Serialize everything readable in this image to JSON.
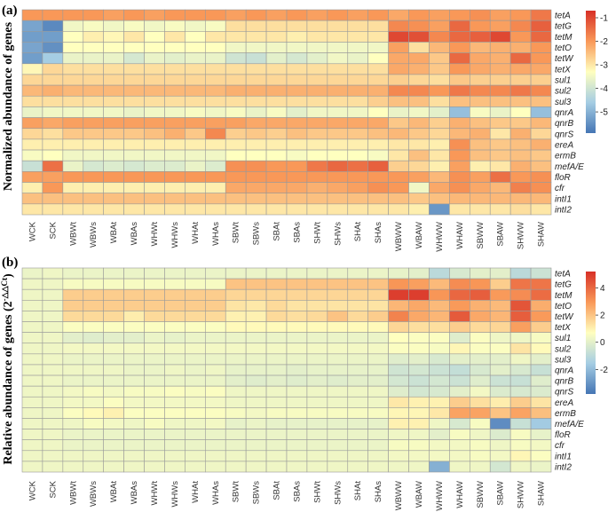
{
  "chart_data": [
    {
      "type": "heatmap",
      "panel_label": "(a)",
      "ylabel": "Normalized abundance of genes",
      "samples": [
        "WCK",
        "SCK",
        "WBWt",
        "WBWs",
        "WBAt",
        "WBAs",
        "WHWt",
        "WHWs",
        "WHAt",
        "WHAs",
        "SBWt",
        "SBWs",
        "SBAt",
        "SBAs",
        "SHWt",
        "SHWs",
        "SHAt",
        "SHAs",
        "WBWW",
        "WBAW",
        "WHWW",
        "WHAW",
        "SBWW",
        "SBAW",
        "SHWW",
        "SHAW"
      ],
      "genes": [
        "tetA",
        "tetG",
        "tetM",
        "tetO",
        "tetW",
        "tetX",
        "sul1",
        "sul2",
        "sul3",
        "qnrA",
        "qnrB",
        "qnrS",
        "ereA",
        "ermB",
        "mefA/E",
        "floR",
        "cfr",
        "intI1",
        "intI2"
      ],
      "color_range": [
        -5.9,
        -0.7
      ],
      "colorbar_ticks": [
        -1,
        -2,
        -3,
        -4,
        -5
      ],
      "values": [
        [
          -2.0,
          -2.0,
          -2.0,
          -2.0,
          -2.1,
          -2.0,
          -2.1,
          -2.0,
          -2.0,
          -2.0,
          -2.1,
          -2.0,
          -2.1,
          -2.0,
          -2.1,
          -2.0,
          -2.1,
          -2.0,
          -2.2,
          -2.0,
          -2.1,
          -2.0,
          -1.9,
          -2.1,
          -2.0,
          -1.6
        ],
        [
          -5.2,
          -5.6,
          -3.5,
          -3.4,
          -3.5,
          -3.4,
          -3.5,
          -3.4,
          -3.5,
          -3.4,
          -2.9,
          -2.9,
          -2.9,
          -2.9,
          -2.9,
          -2.9,
          -2.9,
          -2.9,
          -1.8,
          -1.9,
          -2.1,
          -1.4,
          -2.0,
          -2.1,
          -1.8,
          -1.3
        ],
        [
          -5.3,
          -5.3,
          -3.3,
          -3.1,
          -3.2,
          -3.0,
          -3.3,
          -3.0,
          -3.3,
          -3.0,
          -3.0,
          -3.0,
          -3.0,
          -3.1,
          -3.0,
          -3.0,
          -3.0,
          -3.0,
          -1.0,
          -1.1,
          -1.8,
          -1.4,
          -1.3,
          -1.0,
          -2.0,
          -1.4
        ],
        [
          -5.2,
          -5.5,
          -3.3,
          -3.3,
          -3.3,
          -3.3,
          -3.3,
          -3.3,
          -3.3,
          -3.3,
          -3.5,
          -3.5,
          -3.5,
          -3.5,
          -3.5,
          -3.5,
          -3.5,
          -3.5,
          -2.1,
          -2.9,
          -2.4,
          -2.0,
          -2.4,
          -2.3,
          -2.3,
          -2.0
        ],
        [
          -5.3,
          -4.6,
          -3.6,
          -3.6,
          -3.6,
          -3.9,
          -3.6,
          -3.7,
          -3.6,
          -3.6,
          -4.0,
          -4.1,
          -3.7,
          -3.9,
          -3.7,
          -3.5,
          -3.6,
          -3.3,
          -2.2,
          -2.2,
          -2.6,
          -1.4,
          -2.2,
          -2.3,
          -1.4,
          -2.0
        ],
        [
          -3.2,
          -2.8,
          -2.9,
          -2.9,
          -2.9,
          -2.9,
          -2.9,
          -2.9,
          -2.9,
          -2.9,
          -2.9,
          -2.9,
          -2.9,
          -2.9,
          -2.9,
          -2.9,
          -2.9,
          -2.9,
          -2.2,
          -2.3,
          -2.6,
          -2.0,
          -2.2,
          -2.3,
          -2.2,
          -2.2
        ],
        [
          -2.8,
          -2.8,
          -2.8,
          -2.8,
          -2.8,
          -2.8,
          -2.8,
          -2.8,
          -2.8,
          -2.8,
          -2.8,
          -2.8,
          -2.8,
          -2.8,
          -2.8,
          -2.8,
          -2.8,
          -2.8,
          -2.7,
          -2.8,
          -2.9,
          -2.6,
          -2.7,
          -2.7,
          -2.7,
          -2.7
        ],
        [
          -2.4,
          -2.3,
          -2.4,
          -2.4,
          -2.4,
          -2.4,
          -2.4,
          -2.4,
          -2.4,
          -2.4,
          -2.3,
          -2.3,
          -2.3,
          -2.3,
          -2.3,
          -2.3,
          -2.3,
          -2.3,
          -1.8,
          -1.8,
          -2.0,
          -1.6,
          -1.8,
          -1.8,
          -1.6,
          -1.8
        ],
        [
          -2.9,
          -2.9,
          -2.9,
          -2.9,
          -2.9,
          -2.9,
          -2.9,
          -2.9,
          -2.9,
          -2.9,
          -2.9,
          -2.9,
          -2.9,
          -2.9,
          -2.9,
          -2.9,
          -2.9,
          -2.7,
          -2.5,
          -2.5,
          -2.9,
          -2.5,
          -2.5,
          -2.5,
          -2.5,
          -2.5
        ],
        [
          -3.6,
          -3.5,
          -3.5,
          -3.5,
          -3.5,
          -3.6,
          -3.5,
          -3.5,
          -3.4,
          -3.5,
          -3.4,
          -3.6,
          -3.4,
          -3.7,
          -3.5,
          -3.5,
          -3.5,
          -3.3,
          -3.6,
          -3.5,
          -3.7,
          -4.8,
          -3.4,
          -3.6,
          -3.3,
          -4.8
        ],
        [
          -2.1,
          -2.2,
          -2.1,
          -2.1,
          -2.1,
          -2.1,
          -2.1,
          -2.1,
          -2.1,
          -2.1,
          -2.1,
          -2.2,
          -2.2,
          -2.2,
          -2.2,
          -2.2,
          -2.2,
          -2.2,
          -2.6,
          -2.4,
          -2.7,
          -2.3,
          -2.5,
          -2.6,
          -2.6,
          -2.4
        ],
        [
          -2.8,
          -2.9,
          -2.6,
          -2.6,
          -2.6,
          -2.6,
          -2.5,
          -2.3,
          -2.6,
          -1.8,
          -2.7,
          -2.6,
          -2.7,
          -2.5,
          -2.6,
          -2.6,
          -2.6,
          -2.5,
          -2.4,
          -2.6,
          -2.8,
          -2.4,
          -2.3,
          -3.0,
          -2.3,
          -2.8
        ],
        [
          -3.1,
          -3.1,
          -3.1,
          -3.1,
          -3.1,
          -3.1,
          -3.1,
          -3.1,
          -3.1,
          -3.1,
          -3.1,
          -3.1,
          -3.1,
          -3.1,
          -3.1,
          -3.1,
          -3.1,
          -3.1,
          -3.0,
          -3.0,
          -3.1,
          -1.9,
          -2.5,
          -2.6,
          -2.5,
          -2.3
        ],
        [
          -3.4,
          -3.3,
          -3.5,
          -3.5,
          -3.5,
          -3.5,
          -3.5,
          -3.5,
          -3.5,
          -3.5,
          -3.3,
          -3.3,
          -3.3,
          -3.4,
          -3.3,
          -3.3,
          -3.3,
          -3.4,
          -3.0,
          -2.5,
          -3.0,
          -2.0,
          -2.5,
          -2.6,
          -2.5,
          -2.6
        ],
        [
          -4.1,
          -1.5,
          -3.6,
          -3.9,
          -3.8,
          -3.9,
          -3.8,
          -3.8,
          -3.6,
          -3.8,
          -1.9,
          -1.9,
          -2.0,
          -2.0,
          -1.6,
          -1.4,
          -1.5,
          -1.3,
          -2.7,
          -2.8,
          -3.1,
          -2.1,
          -3.1,
          -3.0,
          -2.3,
          -2.5
        ],
        [
          -2.1,
          -2.1,
          -2.0,
          -2.0,
          -2.0,
          -2.0,
          -2.0,
          -2.0,
          -2.0,
          -2.0,
          -2.0,
          -2.0,
          -2.0,
          -2.0,
          -2.0,
          -2.0,
          -2.0,
          -2.0,
          -2.0,
          -2.1,
          -2.4,
          -1.9,
          -2.1,
          -1.5,
          -2.0,
          -1.9
        ],
        [
          -3.1,
          -2.0,
          -3.1,
          -3.1,
          -3.1,
          -3.1,
          -3.1,
          -3.1,
          -3.1,
          -3.1,
          -2.2,
          -2.2,
          -2.2,
          -2.2,
          -2.3,
          -2.2,
          -2.1,
          -1.9,
          -2.0,
          -3.5,
          -2.2,
          -1.9,
          -2.2,
          -2.4,
          -1.7,
          -1.9
        ],
        [
          -2.5,
          -2.5,
          -2.5,
          -2.5,
          -2.5,
          -2.5,
          -2.5,
          -2.5,
          -2.5,
          -2.5,
          -2.5,
          -2.5,
          -2.5,
          -2.5,
          -2.5,
          -2.5,
          -2.5,
          -2.5,
          -2.5,
          -2.6,
          -2.5,
          -2.4,
          -2.4,
          -2.4,
          -2.4,
          -2.4
        ],
        [
          -3.0,
          -3.0,
          -3.0,
          -3.0,
          -3.0,
          -3.0,
          -3.0,
          -3.0,
          -3.0,
          -3.0,
          -3.0,
          -3.0,
          -3.0,
          -3.0,
          -3.0,
          -3.0,
          -3.0,
          -3.0,
          -3.0,
          -3.1,
          -5.4,
          -3.0,
          -3.0,
          -3.0,
          -2.9,
          -3.0
        ]
      ]
    },
    {
      "type": "heatmap",
      "panel_label": "(b)",
      "ylabel": "Relative abundance of genes (2",
      "ylabel_sup": "-△△Ct",
      "ylabel_end": ")",
      "samples": [
        "WCK",
        "SCK",
        "WBWt",
        "WBWs",
        "WBAt",
        "WBAs",
        "WHWt",
        "WHWs",
        "WHAt",
        "WHAs",
        "SBWt",
        "SBWs",
        "SBAt",
        "SBAs",
        "SHWt",
        "SHWs",
        "SHAt",
        "SHAs",
        "WBWW",
        "WBAW",
        "WHWW",
        "WHAW",
        "SBWW",
        "SBAW",
        "SHWW",
        "SHAW"
      ],
      "genes": [
        "tetA",
        "tetG",
        "tetM",
        "tetO",
        "tetW",
        "tetX",
        "sul1",
        "sul2",
        "sul3",
        "qnrA",
        "qnrB",
        "qnrS",
        "ereA",
        "ermB",
        "mefA/E",
        "floR",
        "cfr",
        "intI1",
        "intI2"
      ],
      "color_range": [
        -3.8,
        5.2
      ],
      "colorbar_ticks": [
        4,
        2,
        0,
        -2
      ],
      "values": [
        [
          0.2,
          0.3,
          0.2,
          0.2,
          0.2,
          0.2,
          0.2,
          0.2,
          0.2,
          0.2,
          0.2,
          0.2,
          0.2,
          0.2,
          0.2,
          0.2,
          0.2,
          0.2,
          0.1,
          0.0,
          -1.0,
          -0.3,
          0.0,
          0.0,
          -1.0,
          -0.6
        ],
        [
          0.3,
          0.3,
          0.5,
          0.5,
          0.5,
          0.5,
          0.5,
          0.5,
          0.5,
          0.5,
          2.0,
          2.0,
          2.0,
          2.0,
          2.0,
          2.0,
          2.0,
          2.0,
          3.0,
          2.8,
          2.2,
          3.2,
          3.0,
          1.8,
          3.7,
          3.7
        ],
        [
          0.3,
          0.3,
          1.8,
          1.8,
          1.8,
          1.8,
          1.8,
          1.8,
          1.8,
          1.8,
          1.6,
          1.6,
          1.6,
          1.6,
          1.6,
          1.6,
          1.6,
          1.6,
          4.9,
          4.9,
          3.0,
          4.0,
          4.2,
          2.9,
          3.2,
          3.9
        ],
        [
          0.3,
          0.3,
          1.8,
          1.8,
          1.8,
          1.8,
          1.8,
          1.8,
          1.8,
          1.8,
          1.3,
          1.2,
          1.5,
          1.3,
          1.3,
          1.3,
          1.3,
          1.3,
          2.3,
          2.6,
          2.2,
          2.9,
          2.4,
          2.2,
          4.4,
          2.5
        ],
        [
          0.3,
          0.3,
          1.5,
          1.5,
          1.5,
          1.1,
          1.5,
          1.5,
          1.5,
          1.5,
          1.0,
          1.0,
          1.5,
          1.4,
          1.5,
          2.0,
          1.5,
          1.8,
          3.4,
          2.6,
          2.3,
          4.3,
          2.6,
          2.3,
          4.2,
          2.9
        ],
        [
          0.3,
          0.3,
          0.6,
          0.6,
          0.6,
          0.6,
          0.6,
          0.6,
          0.6,
          0.6,
          0.8,
          0.8,
          0.8,
          0.8,
          0.8,
          0.8,
          0.8,
          0.8,
          1.6,
          1.4,
          1.4,
          1.8,
          1.5,
          1.6,
          2.8,
          1.8
        ],
        [
          0.3,
          0.3,
          0.0,
          -0.1,
          0.0,
          0.0,
          0.2,
          0.1,
          0.2,
          0.2,
          0.2,
          0.2,
          0.2,
          0.2,
          0.2,
          0.2,
          0.2,
          0.2,
          0.7,
          0.6,
          0.6,
          -0.1,
          0.6,
          0.3,
          0.3,
          0.5
        ],
        [
          0.3,
          0.3,
          0.4,
          0.4,
          0.4,
          0.4,
          0.4,
          0.4,
          0.4,
          0.4,
          0.4,
          0.4,
          0.4,
          0.4,
          0.4,
          0.4,
          0.4,
          0.4,
          0.6,
          0.6,
          0.5,
          0.9,
          0.6,
          0.6,
          1.3,
          0.8
        ],
        [
          0.3,
          0.3,
          0.2,
          0.2,
          0.2,
          0.2,
          0.2,
          0.2,
          0.2,
          0.2,
          0.2,
          0.2,
          0.2,
          0.2,
          0.2,
          0.2,
          0.2,
          0.2,
          -0.1,
          0.0,
          -0.3,
          0.0,
          0.0,
          0.0,
          0.3,
          0.0
        ],
        [
          0.3,
          0.3,
          0.3,
          0.3,
          0.3,
          0.2,
          0.2,
          0.3,
          0.2,
          0.3,
          0.1,
          0.1,
          0.1,
          0.0,
          0.1,
          0.1,
          0.1,
          0.1,
          -0.5,
          -0.4,
          -0.6,
          -0.8,
          -0.3,
          0.0,
          -0.3,
          -0.7
        ],
        [
          0.3,
          0.3,
          0.2,
          0.2,
          0.2,
          0.2,
          0.2,
          0.2,
          0.2,
          0.2,
          0.0,
          -0.1,
          0.0,
          -0.1,
          0.0,
          -0.1,
          0.0,
          0.0,
          -0.4,
          -0.6,
          -0.4,
          -0.6,
          -0.1,
          -0.6,
          -0.7,
          -0.1
        ],
        [
          0.3,
          0.3,
          0.4,
          0.5,
          0.4,
          0.5,
          0.5,
          0.6,
          0.5,
          0.6,
          0.3,
          0.3,
          0.3,
          0.3,
          0.3,
          0.3,
          0.3,
          0.3,
          -0.1,
          -0.4,
          -0.3,
          0.0,
          0.4,
          -0.2,
          -0.3,
          -0.2
        ],
        [
          0.3,
          0.3,
          0.4,
          0.4,
          0.6,
          0.4,
          0.4,
          0.4,
          0.4,
          0.4,
          0.3,
          0.3,
          0.3,
          0.3,
          0.3,
          0.3,
          0.3,
          0.3,
          1.2,
          1.0,
          1.0,
          1.8,
          1.4,
          1.1,
          1.8,
          1.3
        ],
        [
          0.3,
          0.3,
          0.6,
          0.8,
          1.0,
          0.6,
          0.6,
          0.6,
          0.6,
          0.6,
          0.5,
          0.4,
          0.5,
          0.5,
          0.5,
          0.5,
          0.5,
          0.5,
          0.9,
          0.9,
          1.2,
          2.7,
          2.7,
          2.0,
          2.7,
          2.1
        ],
        [
          0.3,
          0.3,
          0.3,
          0.5,
          0.4,
          0.3,
          0.5,
          0.3,
          0.3,
          0.4,
          0.1,
          0.2,
          0.1,
          0.1,
          0.1,
          0.1,
          0.1,
          0.1,
          1.0,
          1.0,
          0.3,
          -0.3,
          0.5,
          -3.2,
          -0.7,
          -1.6
        ],
        [
          0.3,
          0.3,
          0.2,
          0.2,
          0.2,
          0.2,
          0.2,
          0.2,
          0.2,
          0.2,
          0.2,
          0.2,
          0.2,
          0.2,
          0.2,
          0.2,
          0.2,
          0.2,
          0.3,
          0.3,
          0.0,
          0.5,
          0.3,
          -0.2,
          0.5,
          0.1
        ],
        [
          0.3,
          0.3,
          0.2,
          0.2,
          0.2,
          0.2,
          0.2,
          0.2,
          0.2,
          0.2,
          0.2,
          0.2,
          0.2,
          0.2,
          0.2,
          0.2,
          0.2,
          0.2,
          0.5,
          0.5,
          0.4,
          0.4,
          0.5,
          0.3,
          0.5,
          0.4
        ],
        [
          0.3,
          0.3,
          0.3,
          0.3,
          0.3,
          0.3,
          0.3,
          0.3,
          0.3,
          0.3,
          0.3,
          0.3,
          0.3,
          0.3,
          0.3,
          0.3,
          0.3,
          0.3,
          0.4,
          0.4,
          0.4,
          0.4,
          0.5,
          0.4,
          0.9,
          0.6
        ],
        [
          0.3,
          0.3,
          0.3,
          0.3,
          0.3,
          0.3,
          0.3,
          0.3,
          0.3,
          0.3,
          0.3,
          0.3,
          0.3,
          0.3,
          0.3,
          0.3,
          0.3,
          0.3,
          0.3,
          0.3,
          -2.3,
          0.3,
          0.3,
          -0.4,
          0.3,
          0.2
        ]
      ]
    }
  ],
  "colors": {
    "low": "#4575b4",
    "mid": "#ffffbf",
    "high": "#d73027",
    "grid": "#9a9a9a"
  }
}
